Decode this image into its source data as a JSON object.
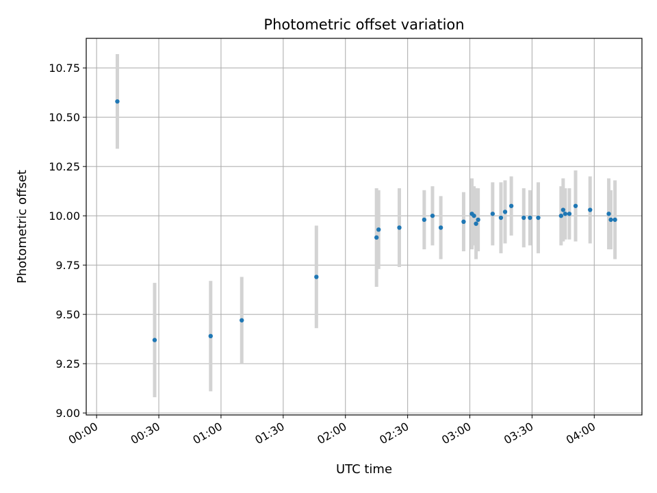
{
  "chart_data": {
    "type": "scatter",
    "title": "Photometric offset variation",
    "xlabel": "UTC time",
    "ylabel": "Photometric offset",
    "xlim": [
      "23:55",
      "04:23"
    ],
    "ylim": [
      8.99,
      10.9
    ],
    "x_ticks": [
      "00:00",
      "00:30",
      "01:00",
      "01:30",
      "02:00",
      "02:30",
      "03:00",
      "03:30",
      "04:00"
    ],
    "y_ticks": [
      "9.00",
      "9.25",
      "9.50",
      "9.75",
      "10.00",
      "10.25",
      "10.50",
      "10.75"
    ],
    "grid": true,
    "colors": {
      "point": "#1f77b4",
      "errorbar": "#d3d3d3",
      "grid": "#b0b0b0"
    },
    "series": [
      {
        "x": [
          "00:10",
          "00:28",
          "00:55",
          "01:10",
          "01:46",
          "02:15",
          "02:16",
          "02:26",
          "02:38",
          "02:42",
          "02:46",
          "02:57",
          "03:01",
          "03:02",
          "03:03",
          "03:04",
          "03:11",
          "03:15",
          "03:17",
          "03:20",
          "03:26",
          "03:29",
          "03:33",
          "03:44",
          "03:45",
          "03:46",
          "03:48",
          "03:51",
          "03:58",
          "04:07",
          "04:08",
          "04:10"
        ],
        "y": [
          10.58,
          9.37,
          9.39,
          9.47,
          9.69,
          9.89,
          9.93,
          9.94,
          9.98,
          10.0,
          9.94,
          9.97,
          10.01,
          10.0,
          9.96,
          9.98,
          10.01,
          9.99,
          10.02,
          10.05,
          9.99,
          9.99,
          9.99,
          10.0,
          10.03,
          10.01,
          10.01,
          10.05,
          10.03,
          10.01,
          9.98,
          9.98
        ],
        "err": [
          0.24,
          0.29,
          0.28,
          0.22,
          0.26,
          0.25,
          0.2,
          0.2,
          0.15,
          0.15,
          0.16,
          0.15,
          0.18,
          0.15,
          0.18,
          0.16,
          0.16,
          0.18,
          0.16,
          0.15,
          0.15,
          0.14,
          0.18,
          0.15,
          0.16,
          0.13,
          0.13,
          0.18,
          0.17,
          0.18,
          0.15,
          0.2
        ]
      }
    ]
  }
}
